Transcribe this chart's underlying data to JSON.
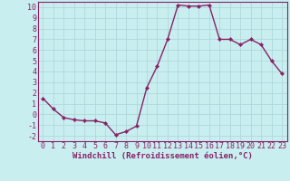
{
  "x": [
    0,
    1,
    2,
    3,
    4,
    5,
    6,
    7,
    8,
    9,
    10,
    11,
    12,
    13,
    14,
    15,
    16,
    17,
    18,
    19,
    20,
    21,
    22,
    23
  ],
  "y": [
    1.5,
    0.5,
    -0.3,
    -0.5,
    -0.6,
    -0.6,
    -0.8,
    -1.9,
    -1.6,
    -1.1,
    2.5,
    4.5,
    7.0,
    10.2,
    10.1,
    10.1,
    10.2,
    7.0,
    7.0,
    6.5,
    7.0,
    6.5,
    5.0,
    3.8
  ],
  "line_color": "#882266",
  "marker": "D",
  "marker_size": 2.2,
  "linewidth": 1.0,
  "bg_color": "#c8eef0",
  "grid_color": "#b0d8da",
  "xlabel": "Windchill (Refroidissement éolien,°C)",
  "xlabel_fontsize": 6.5,
  "tick_fontsize": 6,
  "xlim": [
    -0.5,
    23.5
  ],
  "ylim": [
    -2.5,
    10.5
  ],
  "yticks": [
    -2,
    -1,
    0,
    1,
    2,
    3,
    4,
    5,
    6,
    7,
    8,
    9,
    10
  ],
  "xticks": [
    0,
    1,
    2,
    3,
    4,
    5,
    6,
    7,
    8,
    9,
    10,
    11,
    12,
    13,
    14,
    15,
    16,
    17,
    18,
    19,
    20,
    21,
    22,
    23
  ]
}
